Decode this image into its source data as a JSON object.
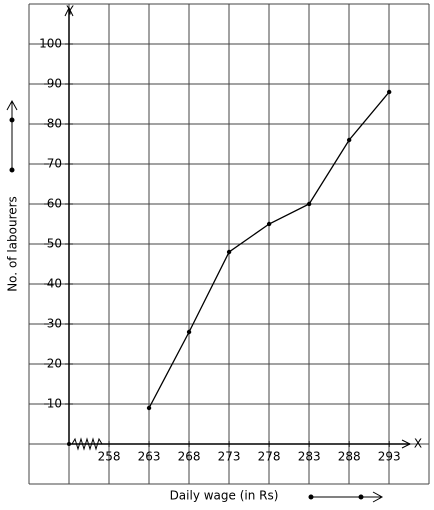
{
  "chart_data": {
    "type": "line",
    "x_label": "Daily wage (in Rs)",
    "y_label": "No. of labourers",
    "x_axis_name": "X",
    "y_axis_name": "Y",
    "x": [
      263,
      268,
      273,
      278,
      283,
      288,
      293
    ],
    "series": [
      {
        "color": "#000000",
        "values": [
          9,
          28,
          48,
          55,
          60,
          76,
          88
        ]
      }
    ],
    "xlim": [
      253,
      295.6
    ],
    "xticks": [
      258,
      263,
      268,
      273,
      278,
      283,
      288,
      293
    ],
    "ylim": [
      0,
      109
    ],
    "yticks": [
      10,
      20,
      30,
      40,
      50,
      60,
      70,
      80,
      90,
      100
    ],
    "grid": true
  }
}
